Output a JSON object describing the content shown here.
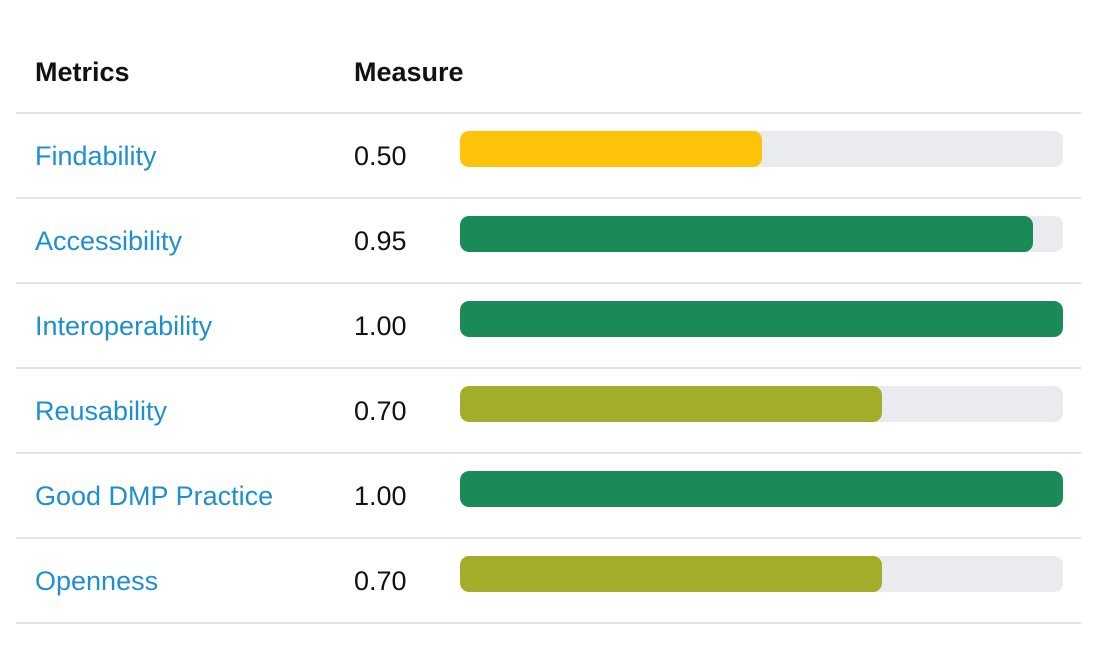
{
  "table": {
    "headers": {
      "metric": "Metrics",
      "measure": "Measure"
    },
    "rows": [
      {
        "metric": "Findability",
        "value": "0.50",
        "fraction": 0.5,
        "color": "#fdc20a"
      },
      {
        "metric": "Accessibility",
        "value": "0.95",
        "fraction": 0.95,
        "color": "#1a8a56"
      },
      {
        "metric": "Interoperability",
        "value": "1.00",
        "fraction": 1.0,
        "color": "#1a8a56"
      },
      {
        "metric": "Reusability",
        "value": "0.70",
        "fraction": 0.7,
        "color": "#a3ad2a"
      },
      {
        "metric": "Good DMP Practice",
        "value": "1.00",
        "fraction": 1.0,
        "color": "#1a8a56"
      },
      {
        "metric": "Openness",
        "value": "0.70",
        "fraction": 0.7,
        "color": "#a3ad2a"
      }
    ]
  }
}
